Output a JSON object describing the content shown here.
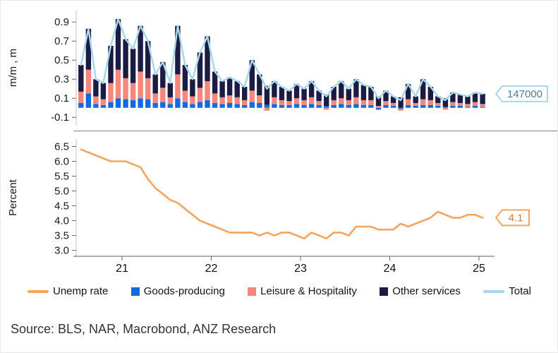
{
  "source": "Source: BLS, NAR, Macrobond, ANZ Research",
  "legend": [
    {
      "label": "Unemp rate",
      "swatch": "line",
      "color": "#F4A45C"
    },
    {
      "label": "Goods-producing",
      "swatch": "square",
      "color": "#1569DE"
    },
    {
      "label": "Leisure & Hospitality",
      "swatch": "square",
      "color": "#F5877C"
    },
    {
      "label": "Other services",
      "swatch": "square",
      "color": "#1B1B43"
    },
    {
      "label": "Total",
      "swatch": "line",
      "color": "#A9D7EA"
    }
  ],
  "chart_data": [
    {
      "type": "bar",
      "subtype": "stacked-bars-with-total-line",
      "ylabel": "m/m , m",
      "yticks": [
        0.9,
        0.7,
        0.5,
        0.3,
        0.1,
        -0.1
      ],
      "ylim": [
        -0.18,
        1.02
      ],
      "x": {
        "unit": "monthly",
        "start_year_fraction": 2020.54,
        "tick_labels": [
          "21",
          "22",
          "23",
          "24",
          "25"
        ]
      },
      "series": [
        {
          "name": "Goods-producing",
          "color": "#1569DE",
          "values": [
            0.05,
            0.15,
            0.04,
            0.03,
            0.06,
            0.1,
            0.09,
            0.08,
            0.1,
            0.09,
            0.05,
            0.06,
            0.04,
            0.1,
            0.06,
            0.04,
            0.06,
            0.08,
            0.05,
            0.04,
            0.05,
            0.04,
            0.03,
            0.06,
            0.05,
            0.03,
            0.04,
            0.03,
            0.03,
            0.04,
            0.03,
            0.04,
            0.03,
            0.02,
            0.03,
            0.04,
            0.03,
            0.04,
            0.03,
            0.03,
            -0.02,
            0.03,
            0.02,
            -0.01,
            0.03,
            0.02,
            0.03,
            0.03,
            0.02,
            0.01,
            0.02,
            0.02,
            0.01,
            0.02,
            0.01
          ]
        },
        {
          "name": "Leisure & Hospitality",
          "color": "#F5877C",
          "values": [
            0.12,
            0.25,
            0.08,
            0.06,
            0.2,
            0.3,
            0.22,
            0.18,
            0.28,
            0.22,
            0.1,
            0.15,
            0.07,
            0.25,
            0.12,
            0.08,
            0.15,
            0.2,
            0.1,
            0.07,
            0.08,
            0.07,
            0.05,
            0.12,
            0.08,
            -0.03,
            0.07,
            0.05,
            0.04,
            0.06,
            0.05,
            0.07,
            0.04,
            -0.02,
            0.05,
            0.06,
            0.05,
            0.07,
            0.05,
            0.05,
            0.02,
            0.04,
            0.03,
            -0.02,
            0.06,
            0.03,
            0.06,
            0.05,
            0.03,
            -0.02,
            0.04,
            0.03,
            0.03,
            0.04,
            0.03
          ]
        },
        {
          "name": "Other services",
          "color": "#1B1B43",
          "values": [
            0.28,
            0.43,
            0.18,
            0.17,
            0.39,
            0.53,
            0.41,
            0.36,
            0.48,
            0.39,
            0.2,
            0.27,
            0.15,
            0.51,
            0.27,
            0.18,
            0.37,
            0.47,
            0.23,
            0.17,
            0.19,
            0.17,
            0.14,
            0.32,
            0.22,
            0.2,
            0.17,
            0.14,
            0.11,
            0.15,
            0.12,
            0.17,
            0.11,
            0.12,
            0.14,
            0.18,
            0.12,
            0.19,
            0.16,
            0.14,
            0.1,
            0.11,
            0.07,
            0.11,
            0.16,
            0.07,
            0.21,
            0.14,
            0.07,
            0.09,
            0.1,
            0.09,
            0.08,
            0.1,
            0.107
          ]
        },
        {
          "name": "Total",
          "type": "line",
          "color": "#A9D7EA",
          "computed": "sum of stacked series"
        }
      ],
      "callout": {
        "label": "147000",
        "border_color": "#A9D7EA",
        "text_color": "#4A7C94"
      }
    },
    {
      "type": "line",
      "ylabel": "Percent",
      "yticks": [
        6.5,
        6.0,
        5.5,
        5.0,
        4.5,
        4.0,
        3.5,
        3.0
      ],
      "ylim": [
        2.8,
        6.75
      ],
      "x": {
        "unit": "monthly",
        "start_year_fraction": 2020.54,
        "tick_labels": [
          "21",
          "22",
          "23",
          "24",
          "25"
        ]
      },
      "series": [
        {
          "name": "Unemp rate",
          "color": "#F4A45C",
          "values": [
            6.4,
            6.3,
            6.2,
            6.1,
            6.0,
            6.0,
            6.0,
            5.9,
            5.8,
            5.4,
            5.1,
            4.9,
            4.7,
            4.6,
            4.4,
            4.2,
            4.0,
            3.9,
            3.8,
            3.7,
            3.6,
            3.6,
            3.6,
            3.6,
            3.5,
            3.6,
            3.5,
            3.6,
            3.6,
            3.5,
            3.4,
            3.6,
            3.5,
            3.4,
            3.6,
            3.6,
            3.5,
            3.8,
            3.8,
            3.8,
            3.7,
            3.7,
            3.7,
            3.9,
            3.8,
            3.9,
            4.0,
            4.1,
            4.3,
            4.2,
            4.1,
            4.1,
            4.2,
            4.2,
            4.1
          ]
        }
      ],
      "callout": {
        "label": "4.1",
        "border_color": "#F4A45C",
        "text_color": "#CF7C2E"
      }
    }
  ]
}
